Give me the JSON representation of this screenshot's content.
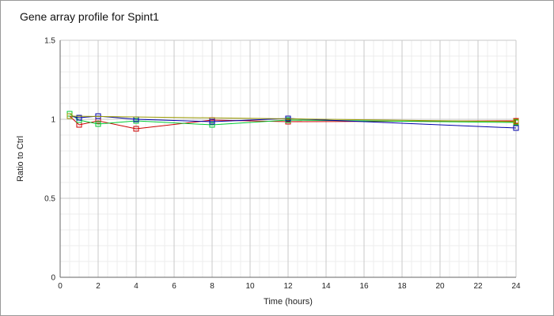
{
  "chart_data": {
    "type": "line",
    "title": "Gene array profile for Spint1",
    "xlabel": "Time (hours)",
    "ylabel": "Ratio to Ctrl",
    "xlim": [
      0,
      24
    ],
    "ylim": [
      0,
      1.5
    ],
    "xticks": [
      0,
      2,
      4,
      6,
      8,
      10,
      12,
      14,
      16,
      18,
      20,
      22,
      24
    ],
    "yticks": [
      0,
      0.5,
      1,
      1.5
    ],
    "x_tick_labels": [
      "0",
      "2",
      "4",
      "6",
      "8",
      "10",
      "12",
      "14",
      "16",
      "18",
      "20",
      "22",
      "24"
    ],
    "y_tick_labels": [
      "0",
      "0.5",
      "1",
      "1.5"
    ],
    "grid": true,
    "series": [
      {
        "color": "#cc0000",
        "marker": "square",
        "x": [
          0.5,
          1,
          2,
          4,
          8,
          12,
          24
        ],
        "y": [
          1.02,
          0.965,
          0.99,
          0.94,
          0.995,
          0.985,
          0.99
        ]
      },
      {
        "color": "#00cc33",
        "marker": "square",
        "x": [
          0.5,
          1,
          2,
          4,
          8,
          12,
          24
        ],
        "y": [
          1.035,
          0.995,
          0.97,
          0.99,
          0.965,
          0.995,
          0.98
        ]
      },
      {
        "color": "#0000aa",
        "marker": "square",
        "x": [
          0.5,
          1,
          2,
          4,
          8,
          12,
          24
        ],
        "y": [
          1.02,
          1.01,
          1.02,
          1.0,
          0.985,
          1.005,
          0.945
        ]
      },
      {
        "color": "#999900",
        "marker": "square",
        "x": [
          0.5,
          24
        ],
        "y": [
          1.02,
          0.985
        ]
      }
    ]
  }
}
